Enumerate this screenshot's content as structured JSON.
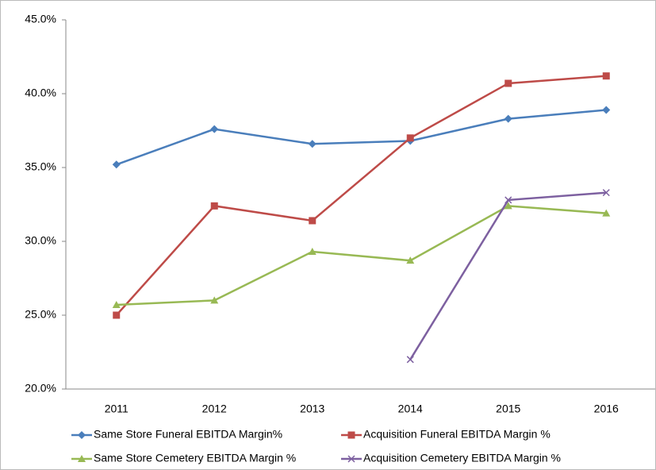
{
  "chart_data": {
    "type": "line",
    "categories": [
      "2011",
      "2012",
      "2013",
      "2014",
      "2015",
      "2016"
    ],
    "series": [
      {
        "name": "Same Store Funeral EBITDA Margin%",
        "color": "#4a7ebb",
        "marker": "diamond",
        "values": [
          35.2,
          37.6,
          36.6,
          36.8,
          38.3,
          38.9
        ]
      },
      {
        "name": "Acquisition Funeral EBITDA Margin %",
        "color": "#be4b48",
        "marker": "square",
        "values": [
          25.0,
          32.4,
          31.4,
          37.0,
          40.7,
          41.2
        ]
      },
      {
        "name": "Same Store Cemetery EBITDA Margin %",
        "color": "#98b954",
        "marker": "triangle",
        "values": [
          25.7,
          26.0,
          29.3,
          28.7,
          32.4,
          31.9
        ]
      },
      {
        "name": "Acquisition Cemetery EBITDA Margin %",
        "color": "#7d60a0",
        "marker": "x",
        "values": [
          null,
          null,
          null,
          22.0,
          32.8,
          33.3
        ]
      }
    ],
    "ylim": [
      20,
      45
    ],
    "yticks": [
      {
        "value": 20,
        "label": "20.0%"
      },
      {
        "value": 25,
        "label": "25.0%"
      },
      {
        "value": 30,
        "label": "30.0%"
      },
      {
        "value": 35,
        "label": "35.0%"
      },
      {
        "value": 40,
        "label": "40.0%"
      },
      {
        "value": 45,
        "label": "45.0%"
      }
    ],
    "grid": false,
    "legend": "bottom"
  }
}
